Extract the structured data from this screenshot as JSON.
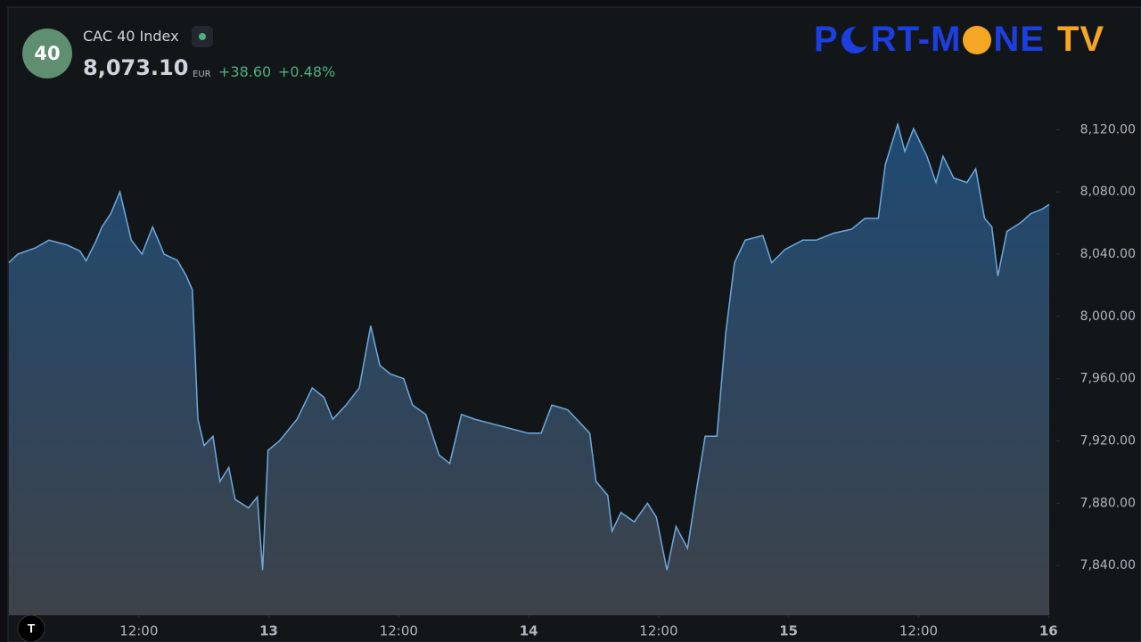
{
  "header": {
    "badge": "40",
    "instrument": "CAC 40 Index",
    "last_price": "8,073.10",
    "currency": "EUR",
    "change": "+38.60",
    "change_percent": "+0.48%"
  },
  "logo": {
    "parts": [
      "P",
      "RT-M",
      "NE",
      "TV"
    ]
  },
  "chart_data": {
    "type": "area",
    "color": "#6fa8dc",
    "x": [
      12.0,
      12.034,
      12.102,
      12.154,
      12.222,
      12.273,
      12.297,
      12.334,
      12.358,
      12.392,
      12.427,
      12.471,
      12.512,
      12.553,
      12.597,
      12.648,
      12.683,
      12.706,
      12.727,
      12.751,
      12.785,
      12.812,
      12.846,
      12.87,
      12.922,
      12.956,
      12.976,
      12.997,
      13.041,
      13.109,
      13.167,
      13.212,
      13.246,
      13.297,
      13.348,
      13.392,
      13.427,
      13.468,
      13.519,
      13.553,
      13.604,
      13.655,
      13.696,
      13.741,
      13.792,
      13.86,
      13.928,
      13.997,
      14.048,
      14.089,
      14.15,
      14.201,
      14.235,
      14.259,
      14.304,
      14.321,
      14.355,
      14.406,
      14.457,
      14.491,
      14.532,
      14.567,
      14.611,
      14.645,
      14.679,
      14.724,
      14.758,
      14.792,
      14.833,
      14.901,
      14.935,
      14.986,
      15.055,
      15.106,
      15.174,
      15.242,
      15.294,
      15.345,
      15.372,
      15.42,
      15.447,
      15.481,
      15.532,
      15.567,
      15.594,
      15.635,
      15.686,
      15.72,
      15.754,
      15.782,
      15.805,
      15.84,
      15.891,
      15.932,
      15.976,
      16.003
    ],
    "values": [
      8034.5,
      8040,
      8044,
      8049,
      8046,
      8042,
      8035.7,
      8048,
      8057.5,
      8066,
      8080,
      8049,
      8040,
      8057.5,
      8040,
      8036,
      8026,
      8017,
      7934,
      7917,
      7923,
      7894,
      7903,
      7882.5,
      7877,
      7884,
      7837,
      7914,
      7920,
      7934,
      7954,
      7948,
      7934,
      7943,
      7954,
      7994,
      7968.5,
      7963,
      7960,
      7943,
      7937,
      7911,
      7905.5,
      7937,
      7934,
      7931,
      7928,
      7925,
      7925,
      7943,
      7940,
      7931,
      7925,
      7894,
      7885,
      7862,
      7874,
      7868,
      7880,
      7871,
      7837,
      7865,
      7851,
      7888,
      7923,
      7923,
      7989,
      8034.5,
      8049,
      8052,
      8034.5,
      8043,
      8049,
      8049,
      8053.5,
      8056,
      8063,
      8063,
      8097.6,
      8123.4,
      8106,
      8120.6,
      8103,
      8086,
      8103,
      8089,
      8086,
      8094.8,
      8063,
      8057.5,
      8026,
      8054.6,
      8060,
      8066,
      8069,
      8072
    ],
    "xlim": [
      12.0,
      16.03
    ],
    "xticks": [
      {
        "value": 12.5,
        "label": "12:00"
      },
      13,
      {
        "value": 13.5,
        "label": "12:00"
      },
      14,
      {
        "value": 14.5,
        "label": "12:00"
      },
      15,
      {
        "value": 15.5,
        "label": "12:00"
      },
      16
    ],
    "ylim": [
      7808,
      8146
    ],
    "yticks": [
      {
        "value": 7840,
        "label": "7,840.00"
      },
      {
        "value": 7880,
        "label": "7,880.00"
      },
      {
        "value": 7920,
        "label": "7,920.00"
      },
      {
        "value": 7960,
        "label": "7,960.00"
      },
      {
        "value": 8000,
        "label": "8,000.00"
      },
      {
        "value": 8040,
        "label": "8,040.00"
      },
      {
        "value": 8080,
        "label": "8,080.00"
      },
      {
        "value": 8120,
        "label": "8,120.00"
      }
    ]
  }
}
